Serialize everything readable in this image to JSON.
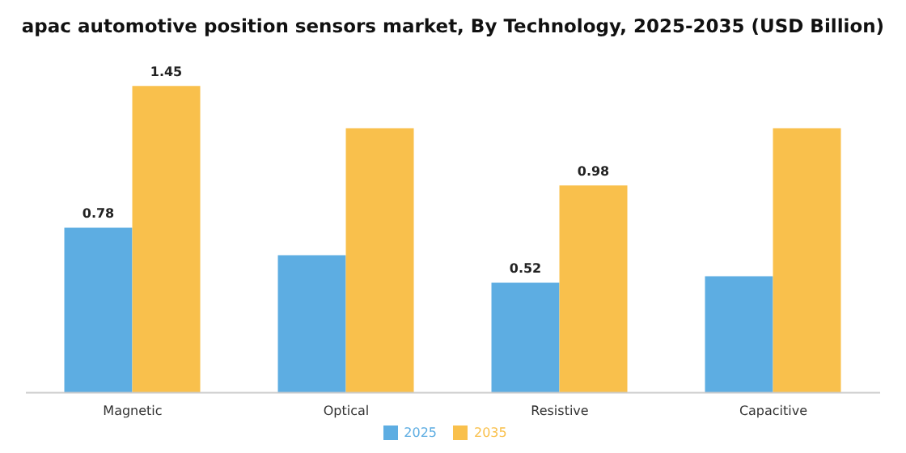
{
  "chart_data": {
    "type": "bar",
    "title": "apac automotive position sensors market, By Technology, 2025-2035 (USD Billion)",
    "categories": [
      "Magnetic",
      "Optical",
      "Resistive",
      "Capacitive"
    ],
    "series": [
      {
        "name": "2025",
        "color": "#5dade2",
        "values": [
          0.78,
          0.65,
          0.52,
          0.55
        ],
        "value_labels": [
          "0.78",
          null,
          "0.52",
          null
        ]
      },
      {
        "name": "2035",
        "color": "#f9c04c",
        "values": [
          1.45,
          1.25,
          0.98,
          1.25
        ],
        "value_labels": [
          "1.45",
          null,
          "0.98",
          null
        ]
      }
    ],
    "legend": "bottom",
    "grid": false
  }
}
